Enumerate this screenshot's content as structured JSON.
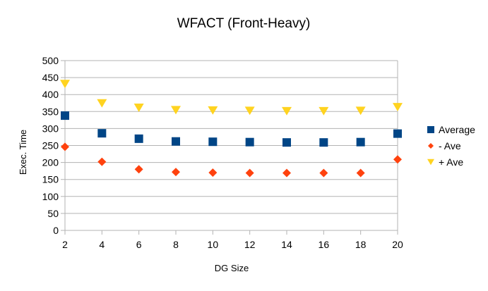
{
  "chart_data": {
    "type": "scatter",
    "title": "WFACT (Front-Heavy)",
    "xlabel": "DG Size",
    "ylabel": "Exec. Time",
    "x": [
      2,
      4,
      6,
      8,
      10,
      12,
      14,
      16,
      18,
      20
    ],
    "xlim": [
      2,
      20
    ],
    "ylim": [
      0,
      500
    ],
    "x_ticks": [
      "2",
      "4",
      "6",
      "8",
      "10",
      "12",
      "14",
      "16",
      "18",
      "20"
    ],
    "y_ticks": [
      "0",
      "50",
      "100",
      "150",
      "200",
      "250",
      "300",
      "350",
      "400",
      "450",
      "500"
    ],
    "grid": true,
    "legend_position": "right",
    "series": [
      {
        "name": "Average",
        "marker": "square",
        "color": "#004586",
        "values": [
          338,
          286,
          270,
          262,
          261,
          260,
          259,
          259,
          260,
          285
        ]
      },
      {
        "name": "- Ave",
        "marker": "diamond",
        "color": "#ff420e",
        "values": [
          246,
          202,
          180,
          172,
          170,
          169,
          169,
          169,
          169,
          209
        ]
      },
      {
        "name": "+ Ave",
        "marker": "triangle-down",
        "color": "#ffd320",
        "values": [
          431,
          374,
          361,
          354,
          353,
          352,
          351,
          351,
          352,
          363
        ]
      }
    ]
  }
}
